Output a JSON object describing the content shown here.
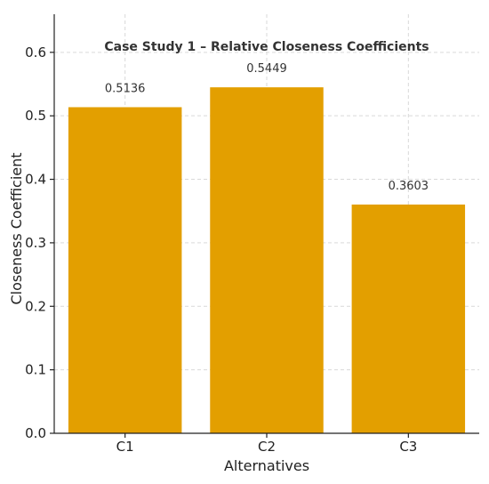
{
  "chart_data": {
    "type": "bar",
    "title": "Case Study 1 – Relative Closeness Coefficients",
    "xlabel": "Alternatives",
    "ylabel": "Closeness Coefficient",
    "categories": [
      "C1",
      "C2",
      "C3"
    ],
    "values": [
      0.5136,
      0.5449,
      0.3603
    ],
    "data_labels": [
      "0.5136",
      "0.5449",
      "0.3603"
    ],
    "ylim": [
      0,
      0.66
    ],
    "yticks": [
      0.0,
      0.1,
      0.2,
      0.3,
      0.4,
      0.5,
      0.6
    ],
    "ytick_labels": [
      "0.0",
      "0.1",
      "0.2",
      "0.3",
      "0.4",
      "0.5",
      "0.6"
    ],
    "grid": true,
    "bar_color": "#e39f00"
  }
}
